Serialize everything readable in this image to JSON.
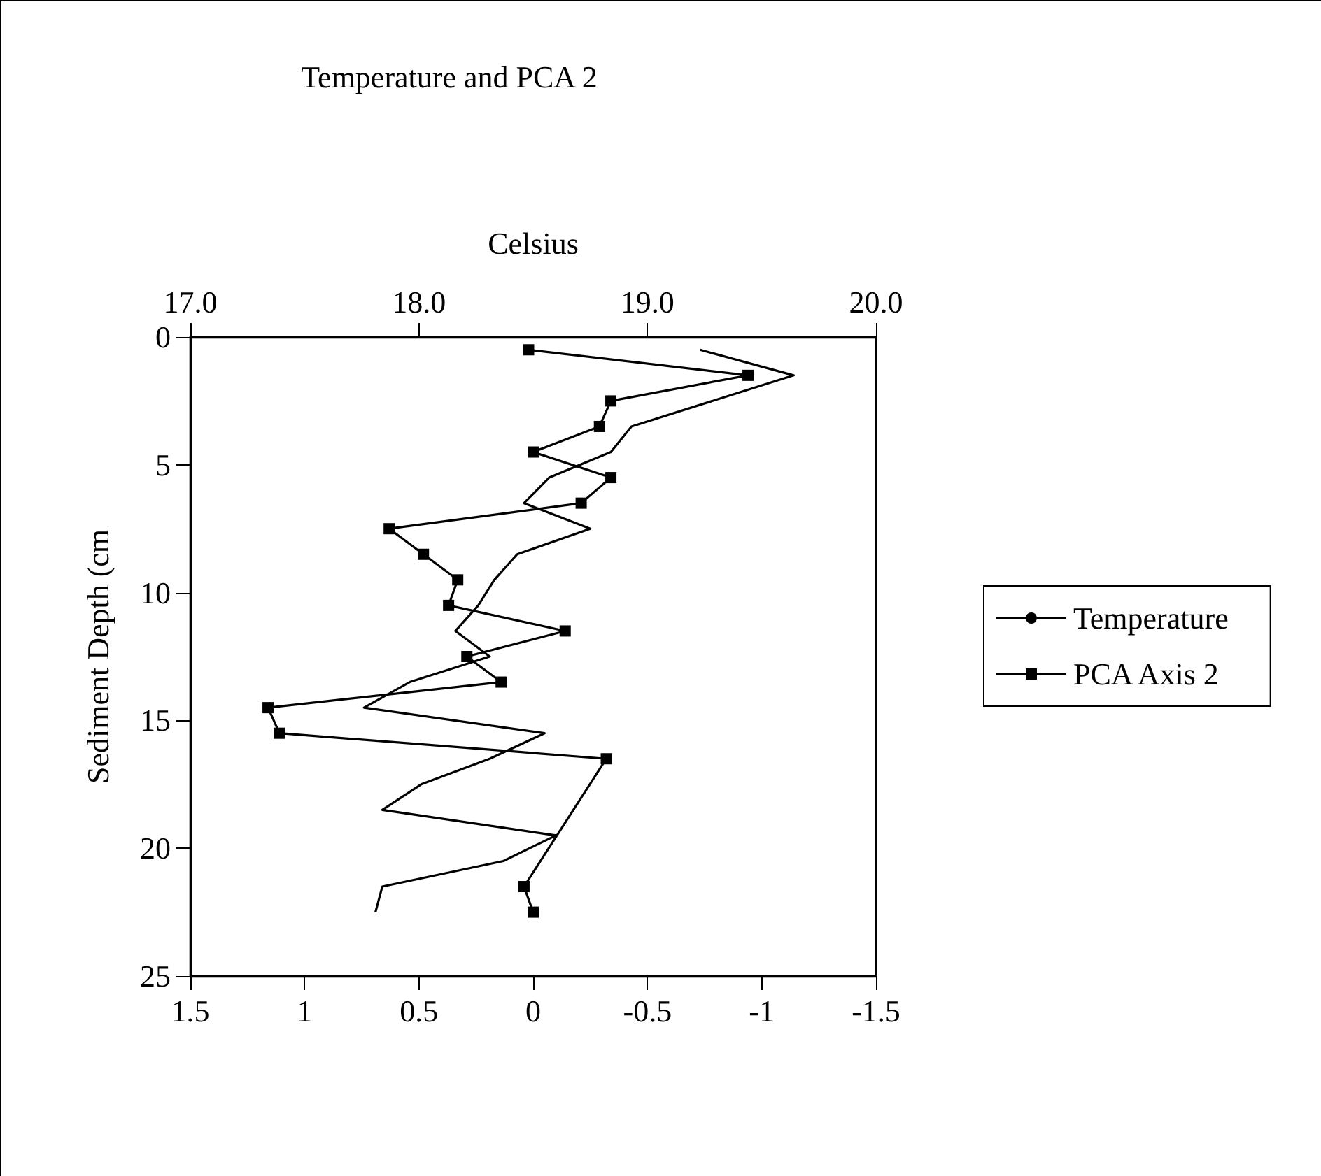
{
  "chart_data": {
    "type": "line",
    "title": "Temperature and PCA 2",
    "x2label": "Celsius",
    "ylabel": "Sediment Depth (cm",
    "series": [
      {
        "name": "Temperature",
        "color": "#000000",
        "axis": "x2",
        "marker": "none",
        "x": [
          19.23,
          19.64,
          18.93,
          18.84,
          18.57,
          18.46,
          18.75,
          18.43,
          18.33,
          18.26,
          18.16,
          18.31,
          17.96,
          17.76,
          18.55,
          18.31,
          18.01,
          17.84,
          18.6,
          18.37,
          17.84,
          17.81
        ],
        "values": [
          0.5,
          1.5,
          3.5,
          4.5,
          5.5,
          6.5,
          7.5,
          8.5,
          9.5,
          10.5,
          11.5,
          12.5,
          13.5,
          14.5,
          15.5,
          16.5,
          17.5,
          18.5,
          19.5,
          20.5,
          21.5,
          22.5
        ]
      },
      {
        "name": "PCA Axis 2",
        "color": "#000000",
        "marker": "square",
        "x": [
          0.02,
          -0.94,
          -0.34,
          -0.29,
          0.0,
          -0.34,
          -0.21,
          0.63,
          0.48,
          0.33,
          0.37,
          -0.14,
          0.29,
          0.14,
          1.16,
          1.11,
          -0.32,
          0.04,
          0.0
        ],
        "values": [
          0.5,
          1.5,
          2.5,
          3.5,
          4.5,
          5.5,
          6.5,
          7.5,
          8.5,
          9.5,
          10.5,
          11.5,
          12.5,
          13.5,
          14.5,
          15.5,
          16.5,
          21.5,
          22.5
        ]
      }
    ],
    "xlim": [
      1.5,
      -1.5
    ],
    "xticks": [
      1.5,
      1,
      0.5,
      0,
      -0.5,
      -1,
      -1.5
    ],
    "x2lim": [
      17,
      20
    ],
    "x2ticks": [
      {
        "value": 17,
        "label": "17.0"
      },
      {
        "value": 18,
        "label": "18.0"
      },
      {
        "value": 19,
        "label": "19.0"
      },
      {
        "value": 20,
        "label": "20.0"
      }
    ],
    "ylim": [
      25,
      0
    ],
    "yticks": [
      0,
      5,
      10,
      15,
      20,
      25
    ],
    "legend": "right",
    "grid": false,
    "line_style": "solid"
  }
}
